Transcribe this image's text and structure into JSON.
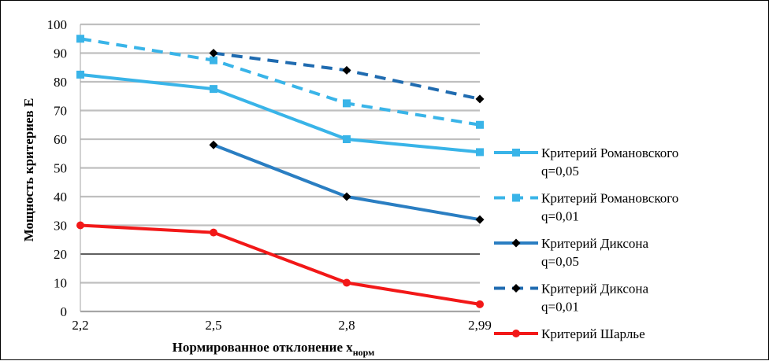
{
  "chart_data": {
    "type": "line",
    "x": [
      "2,2",
      "2,5",
      "2,8",
      "2,99"
    ],
    "ylim": [
      0,
      100
    ],
    "yticks": [
      "0",
      "10",
      "20",
      "30",
      "40",
      "50",
      "60",
      "70",
      "80",
      "90",
      "100"
    ],
    "ylabel": "Мощность критериев Е",
    "xlabel": "Нормированное отклонение x",
    "xlabel_sub": "норм",
    "grid": true,
    "legend_position": "right",
    "series": [
      {
        "name": "Критерий Романовского",
        "name2": "q=0,05",
        "values": [
          82.5,
          77.5,
          60,
          55.5
        ],
        "color": "#39B4E8",
        "dash": "solid",
        "marker": "square",
        "marker_color": "#39B4E8"
      },
      {
        "name": "Критерий Романовского",
        "name2": "q=0,01",
        "values": [
          95,
          87.5,
          72.5,
          65
        ],
        "color": "#39B4E8",
        "dash": "dashed",
        "marker": "square",
        "marker_color": "#39B4E8"
      },
      {
        "name": "Критерий Диксона",
        "name2": "q=0,05",
        "values": [
          null,
          58,
          40,
          32
        ],
        "color": "#2A7EC2",
        "dash": "solid",
        "marker": "diamond",
        "marker_color": "#000000"
      },
      {
        "name": "Критерий Диксона",
        "name2": "q=0,01",
        "values": [
          null,
          90,
          84,
          74
        ],
        "color": "#1F6BB0",
        "dash": "dashed",
        "marker": "diamond",
        "marker_color": "#000000"
      },
      {
        "name": "Критерий Шарлье",
        "name2": "",
        "values": [
          30,
          27.5,
          10,
          2.5
        ],
        "color": "#F21818",
        "dash": "solid",
        "marker": "circle",
        "marker_color": "#F21818"
      }
    ]
  }
}
